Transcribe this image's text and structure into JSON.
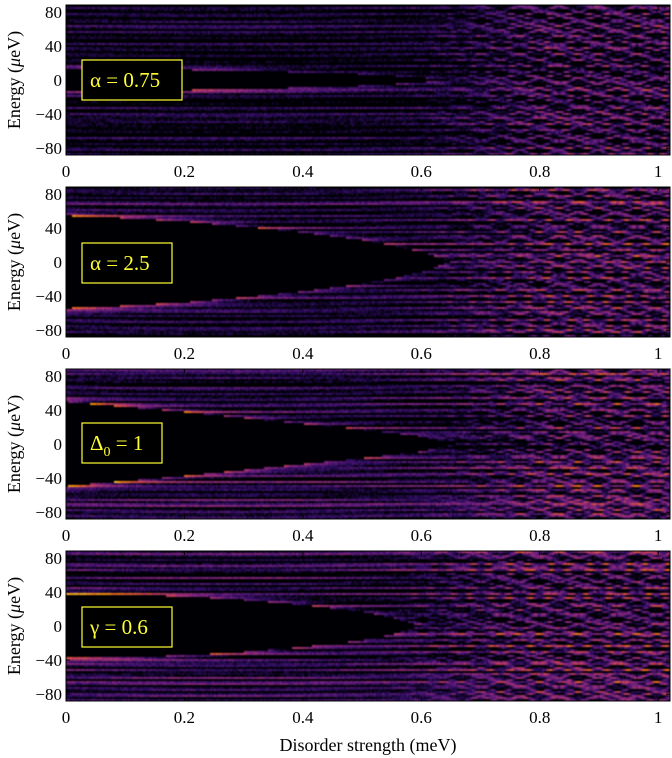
{
  "colors": {
    "label_text": "#ffff33",
    "label_border": "#ffff33",
    "label_background": "#000000",
    "colormap": [
      "#000004",
      "#2c0c5e",
      "#6b1f7b",
      "#a8326e",
      "#dc5039",
      "#f98c0a",
      "#fac228",
      "#fcffa4"
    ]
  },
  "figure": {
    "xlabel": "Disorder strength (meV)"
  },
  "chart_data": [
    {
      "type": "heatmap",
      "label": {
        "symbol": "α",
        "subscript": "",
        "value": "= 0.75"
      },
      "ylabel": {
        "prefix": "Energy (",
        "mu": "μ",
        "suffix": "eV)"
      },
      "xlim": [
        0,
        1.02
      ],
      "ylim": [
        -88,
        88
      ],
      "xticks": [
        0,
        0.2,
        0.4,
        0.6,
        0.8,
        1
      ],
      "xtick_labels": [
        "0",
        "0.2",
        "0.4",
        "0.6",
        "0.8",
        "1"
      ],
      "yticks": [
        80,
        40,
        0,
        -40,
        -80
      ],
      "ytick_labels": [
        "80",
        "40",
        "0",
        "−40",
        "−80"
      ],
      "gap_edge": [
        [
          0.0,
          12
        ],
        [
          0.1,
          12
        ],
        [
          0.2,
          12
        ],
        [
          0.3,
          11
        ],
        [
          0.4,
          9
        ],
        [
          0.5,
          7
        ],
        [
          0.55,
          5
        ],
        [
          0.6,
          3
        ],
        [
          0.64,
          0
        ]
      ],
      "colorscale": "inferno"
    },
    {
      "type": "heatmap",
      "label": {
        "symbol": "α",
        "subscript": "",
        "value": "= 2.5"
      },
      "ylabel": {
        "prefix": "Energy (",
        "mu": "μ",
        "suffix": "eV)"
      },
      "xlim": [
        0,
        1.02
      ],
      "ylim": [
        -88,
        88
      ],
      "xticks": [
        0,
        0.2,
        0.4,
        0.6,
        0.8,
        1
      ],
      "xtick_labels": [
        "0",
        "0.2",
        "0.4",
        "0.6",
        "0.8",
        "1"
      ],
      "yticks": [
        80,
        40,
        0,
        -40,
        -80
      ],
      "ytick_labels": [
        "80",
        "40",
        "0",
        "−40",
        "−80"
      ],
      "gap_edge": [
        [
          0.0,
          55
        ],
        [
          0.1,
          52
        ],
        [
          0.2,
          48
        ],
        [
          0.3,
          42
        ],
        [
          0.4,
          35
        ],
        [
          0.5,
          26
        ],
        [
          0.55,
          20
        ],
        [
          0.6,
          12
        ],
        [
          0.65,
          0
        ]
      ],
      "colorscale": "inferno"
    },
    {
      "type": "heatmap",
      "label": {
        "symbol": "Δ",
        "subscript": "0",
        "value": "= 1"
      },
      "ylabel": {
        "prefix": "Energy (",
        "mu": "μ",
        "suffix": "eV)"
      },
      "xlim": [
        0,
        1.02
      ],
      "ylim": [
        -88,
        88
      ],
      "xticks": [
        0,
        0.2,
        0.4,
        0.6,
        0.8,
        1
      ],
      "xtick_labels": [
        "0",
        "0.2",
        "0.4",
        "0.6",
        "0.8",
        "1"
      ],
      "yticks": [
        80,
        40,
        0,
        -40,
        -80
      ],
      "ytick_labels": [
        "80",
        "40",
        "0",
        "−40",
        "−80"
      ],
      "gap_edge": [
        [
          0.0,
          50
        ],
        [
          0.1,
          44
        ],
        [
          0.2,
          38
        ],
        [
          0.3,
          31
        ],
        [
          0.4,
          24
        ],
        [
          0.5,
          17
        ],
        [
          0.6,
          9
        ],
        [
          0.66,
          0
        ]
      ],
      "colorscale": "inferno"
    },
    {
      "type": "heatmap",
      "label": {
        "symbol": "γ",
        "subscript": "",
        "value": "= 0.6"
      },
      "ylabel": {
        "prefix": "Energy (",
        "mu": "μ",
        "suffix": "eV)"
      },
      "xlim": [
        0,
        1.02
      ],
      "ylim": [
        -88,
        88
      ],
      "xticks": [
        0,
        0.2,
        0.4,
        0.6,
        0.8,
        1
      ],
      "xtick_labels": [
        "0",
        "0.2",
        "0.4",
        "0.6",
        "0.8",
        "1"
      ],
      "yticks": [
        80,
        40,
        0,
        -40,
        -80
      ],
      "ytick_labels": [
        "80",
        "40",
        "0",
        "−40",
        "−80"
      ],
      "gap_edge": [
        [
          0.0,
          38
        ],
        [
          0.1,
          37
        ],
        [
          0.2,
          35
        ],
        [
          0.3,
          31
        ],
        [
          0.4,
          25
        ],
        [
          0.5,
          17
        ],
        [
          0.55,
          10
        ],
        [
          0.6,
          0
        ]
      ],
      "colorscale": "inferno"
    }
  ]
}
